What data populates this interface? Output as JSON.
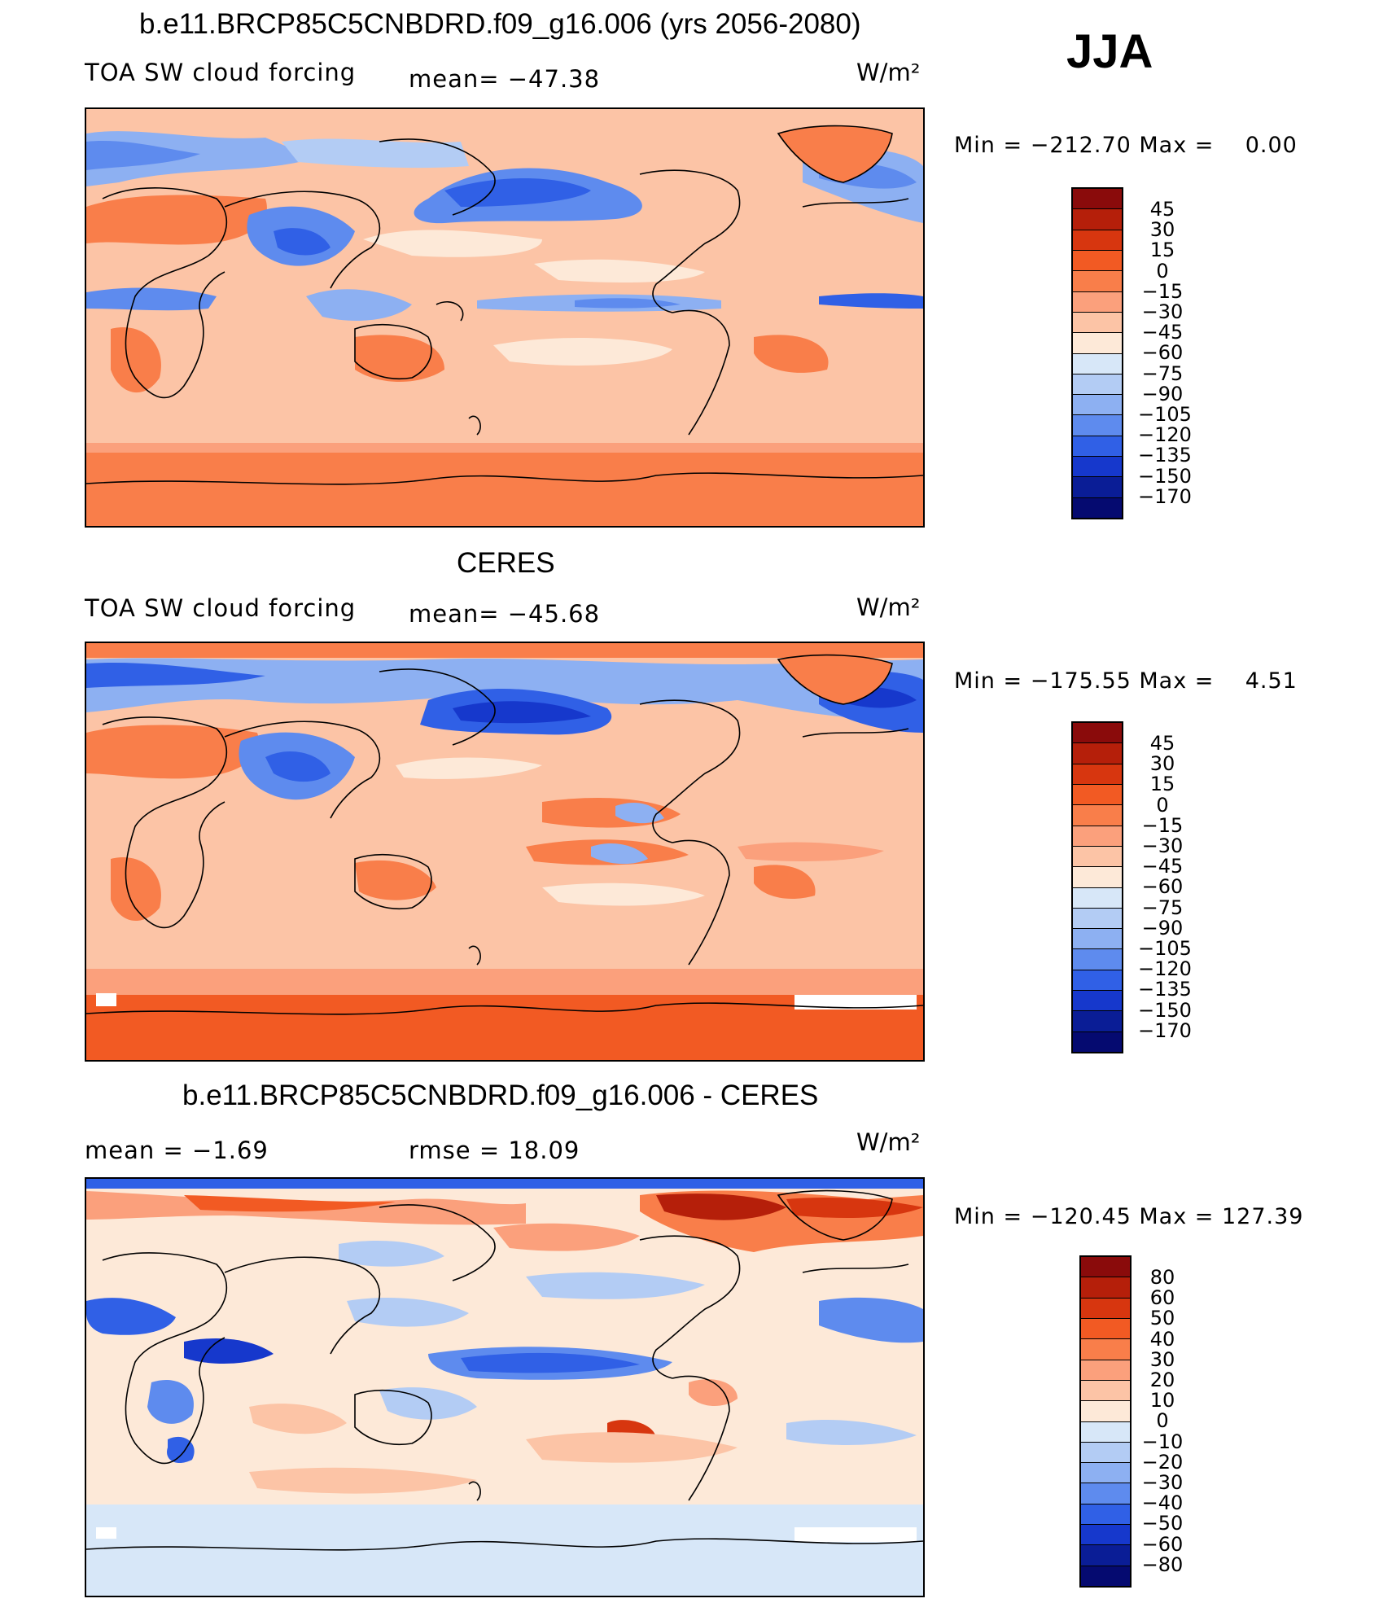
{
  "season": "JJA",
  "panels": [
    {
      "title": "b.e11.BRCP85C5CNBDRD.f09_g16.006 (yrs 2056-2080)",
      "left_label": "TOA SW cloud forcing",
      "stat_label": "mean= −47.38",
      "units": "W/m²",
      "minmax": "Min = −212.70 Max =    0.00",
      "levels": [
        "45",
        "30",
        "15",
        "0",
        "−15",
        "−30",
        "−45",
        "−60",
        "−75",
        "−90",
        "−105",
        "−120",
        "−135",
        "−150",
        "−170"
      ],
      "colors": [
        "#8a0b0b",
        "#b51f0a",
        "#d7360f",
        "#f25a23",
        "#f97e4a",
        "#fba07c",
        "#fcc4a6",
        "#fde9d8",
        "#d7e7f8",
        "#b3ccf4",
        "#8db0f2",
        "#5e8bee",
        "#3060e6",
        "#1638cc",
        "#0a1d96",
        "#050a70"
      ]
    },
    {
      "title": "CERES",
      "left_label": "TOA SW cloud forcing",
      "stat_label": "mean= −45.68",
      "units": "W/m²",
      "minmax": "Min = −175.55 Max =    4.51",
      "levels": [
        "45",
        "30",
        "15",
        "0",
        "−15",
        "−30",
        "−45",
        "−60",
        "−75",
        "−90",
        "−105",
        "−120",
        "−135",
        "−150",
        "−170"
      ],
      "colors": [
        "#8a0b0b",
        "#b51f0a",
        "#d7360f",
        "#f25a23",
        "#f97e4a",
        "#fba07c",
        "#fcc4a6",
        "#fde9d8",
        "#d7e7f8",
        "#b3ccf4",
        "#8db0f2",
        "#5e8bee",
        "#3060e6",
        "#1638cc",
        "#0a1d96",
        "#050a70"
      ]
    },
    {
      "title": "b.e11.BRCP85C5CNBDRD.f09_g16.006 - CERES",
      "left_label": "mean =  −1.69",
      "stat_label": "rmse =  18.09",
      "units": "W/m²",
      "minmax": "Min = −120.45 Max = 127.39",
      "levels": [
        "80",
        "60",
        "50",
        "40",
        "30",
        "20",
        "10",
        "0",
        "−10",
        "−20",
        "−30",
        "−40",
        "−50",
        "−60",
        "−80"
      ],
      "colors": [
        "#8a0b0b",
        "#b51f0a",
        "#d7360f",
        "#f25a23",
        "#f97e4a",
        "#fba07c",
        "#fcc4a6",
        "#fde9d8",
        "#d7e7f8",
        "#b3ccf4",
        "#8db0f2",
        "#5e8bee",
        "#3060e6",
        "#1638cc",
        "#0a1d96",
        "#050a70"
      ]
    }
  ]
}
